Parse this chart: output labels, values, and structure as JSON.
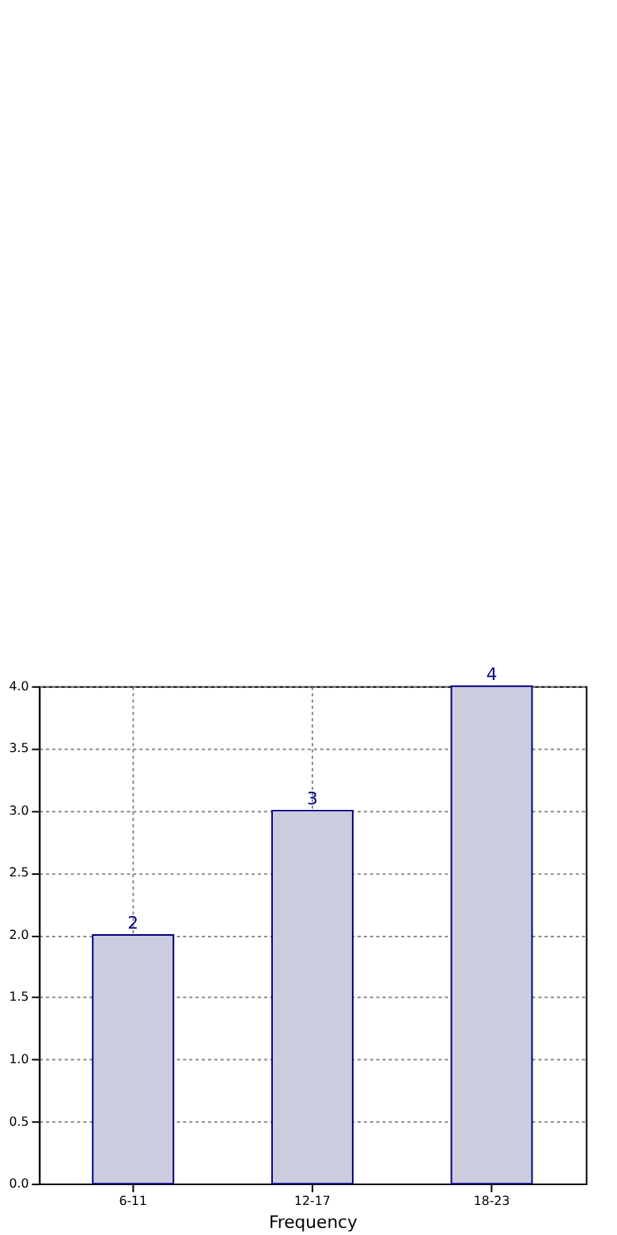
{
  "chart_data": {
    "type": "bar",
    "xlabel": "Frequency",
    "categories": [
      "6-11",
      "12-17",
      "18-23"
    ],
    "values": [
      2,
      3,
      4
    ],
    "color": "#ccccdf",
    "ylim": [
      0,
      4
    ],
    "yticks": [
      {
        "value": 0,
        "label": "0.0"
      },
      {
        "value": 0.5,
        "label": "0.5"
      },
      {
        "value": 1,
        "label": "1.0"
      },
      {
        "value": 1.5,
        "label": "1.5"
      },
      {
        "value": 2,
        "label": "2.0"
      },
      {
        "value": 2.5,
        "label": "2.5"
      },
      {
        "value": 3,
        "label": "3.0"
      },
      {
        "value": 3.5,
        "label": "3.5"
      },
      {
        "value": 4,
        "label": "4.0"
      }
    ],
    "grid": true,
    "data_labels": true
  }
}
